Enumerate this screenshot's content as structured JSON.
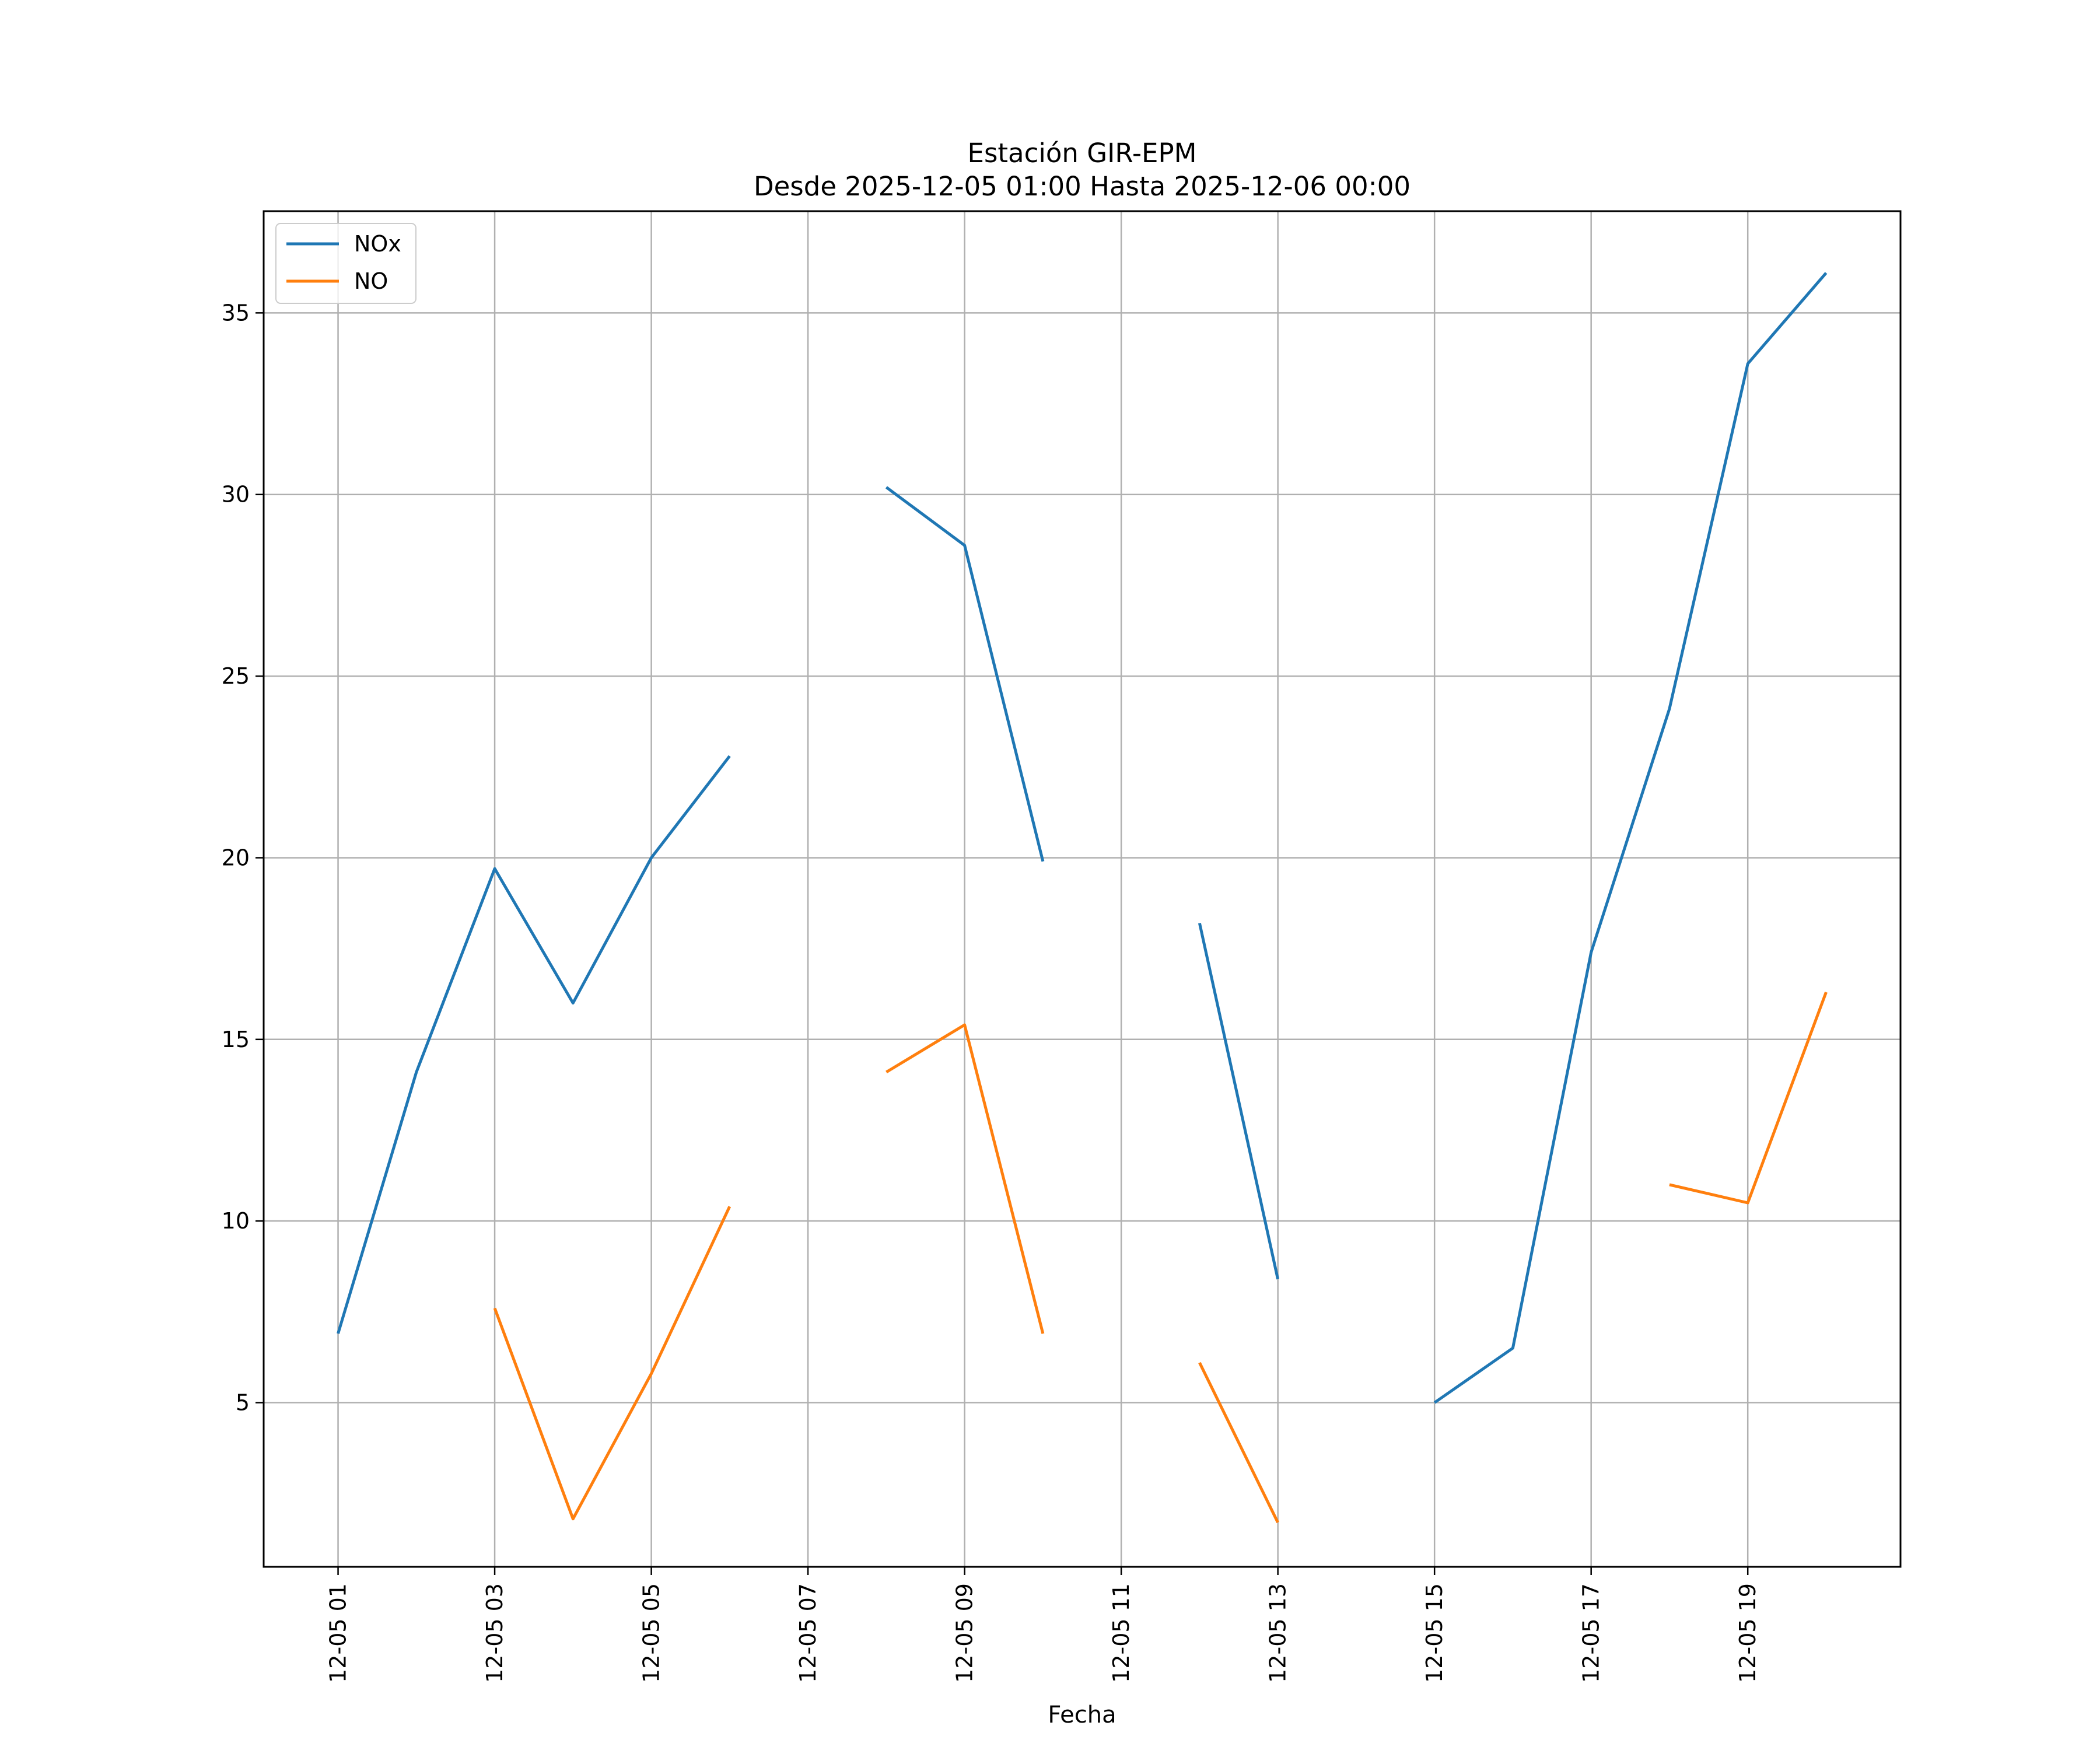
{
  "chart_data": {
    "type": "line",
    "title": "Estación GIR-EPM",
    "subtitle": "Desde 2025-12-05 01:00 Hasta 2025-12-06 00:00",
    "xlabel": "Fecha",
    "ylabel": "",
    "x": [
      "2025-12-05 01:00",
      "2025-12-05 02:00",
      "2025-12-05 03:00",
      "2025-12-05 04:00",
      "2025-12-05 05:00",
      "2025-12-05 06:00",
      "2025-12-05 07:00",
      "2025-12-05 08:00",
      "2025-12-05 09:00",
      "2025-12-05 10:00",
      "2025-12-05 11:00",
      "2025-12-05 12:00",
      "2025-12-05 13:00",
      "2025-12-05 14:00",
      "2025-12-05 15:00",
      "2025-12-05 16:00",
      "2025-12-05 17:00",
      "2025-12-05 18:00",
      "2025-12-05 19:00",
      "2025-12-05 20:00"
    ],
    "series": [
      {
        "name": "NOx",
        "color": "#1f77b4",
        "values": [
          6.9,
          14.1,
          19.7,
          16.0,
          20.0,
          22.8,
          null,
          30.2,
          28.6,
          19.9,
          null,
          18.2,
          8.4,
          null,
          5.0,
          6.5,
          17.4,
          24.1,
          33.6,
          36.1
        ]
      },
      {
        "name": "NO",
        "color": "#ff7f0e",
        "values": [
          null,
          null,
          7.6,
          1.8,
          5.8,
          10.4,
          null,
          14.1,
          15.4,
          6.9,
          null,
          6.1,
          1.7,
          null,
          null,
          null,
          null,
          11.0,
          10.5,
          16.3
        ]
      }
    ],
    "xticks": [
      "2025-12-05 01:00",
      "2025-12-05 03:00",
      "2025-12-05 05:00",
      "2025-12-05 07:00",
      "2025-12-05 09:00",
      "2025-12-05 11:00",
      "2025-12-05 13:00",
      "2025-12-05 15:00",
      "2025-12-05 17:00",
      "2025-12-05 19:00"
    ],
    "xtick_labels": [
      "12-05 01",
      "12-05 03",
      "12-05 05",
      "12-05 07",
      "12-05 09",
      "12-05 11",
      "12-05 13",
      "12-05 15",
      "12-05 17",
      "12-05 19"
    ],
    "xlim": [
      "2025-12-05 00:03",
      "2025-12-05 20:57"
    ],
    "yticks": [
      5,
      10,
      15,
      20,
      25,
      30,
      35
    ],
    "ylim": [
      0.48,
      37.8
    ],
    "grid": true,
    "legend": "top-left"
  }
}
